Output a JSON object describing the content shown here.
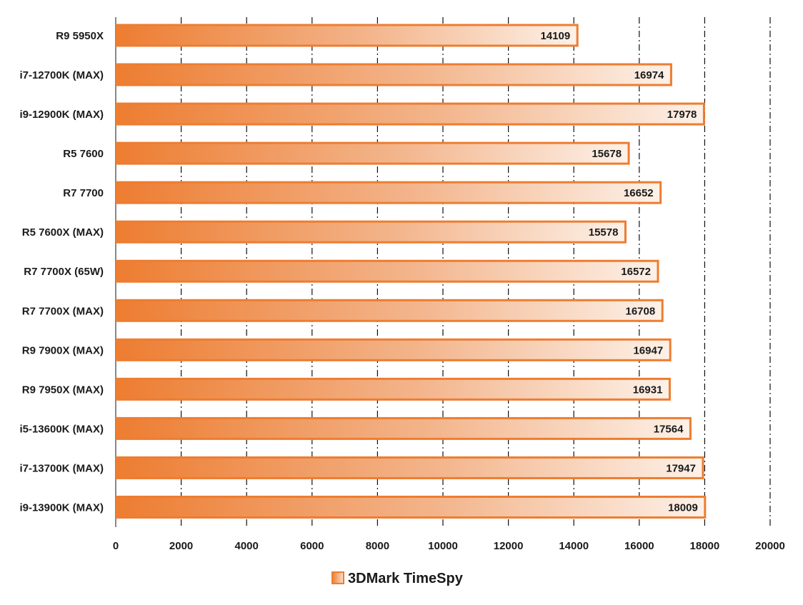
{
  "chart_data": {
    "type": "bar",
    "orientation": "horizontal",
    "title": "",
    "xlabel": "",
    "ylabel": "",
    "categories": [
      "R9 5950X",
      "i7-12700K (MAX)",
      "i9-12900K (MAX)",
      "R5 7600",
      "R7 7700",
      "R5 7600X (MAX)",
      "R7 7700X (65W)",
      "R7 7700X (MAX)",
      "R9 7900X (MAX)",
      "R9 7950X (MAX)",
      "i5-13600K (MAX)",
      "i7-13700K (MAX)",
      "i9-13900K (MAX)"
    ],
    "series": [
      {
        "name": "3DMark TimeSpy",
        "color": "#ed7d31",
        "values": [
          14109,
          16974,
          17978,
          15678,
          16652,
          15578,
          16572,
          16708,
          16947,
          16931,
          17564,
          17947,
          18009
        ]
      }
    ],
    "xlim": [
      0,
      20000
    ],
    "xticks": [
      0,
      2000,
      4000,
      6000,
      8000,
      10000,
      12000,
      14000,
      16000,
      18000,
      20000
    ],
    "grid": "vertical dash-dot",
    "legend": {
      "position": "bottom-center",
      "icon": "legend-swatch-icon"
    },
    "data_labels": true
  }
}
